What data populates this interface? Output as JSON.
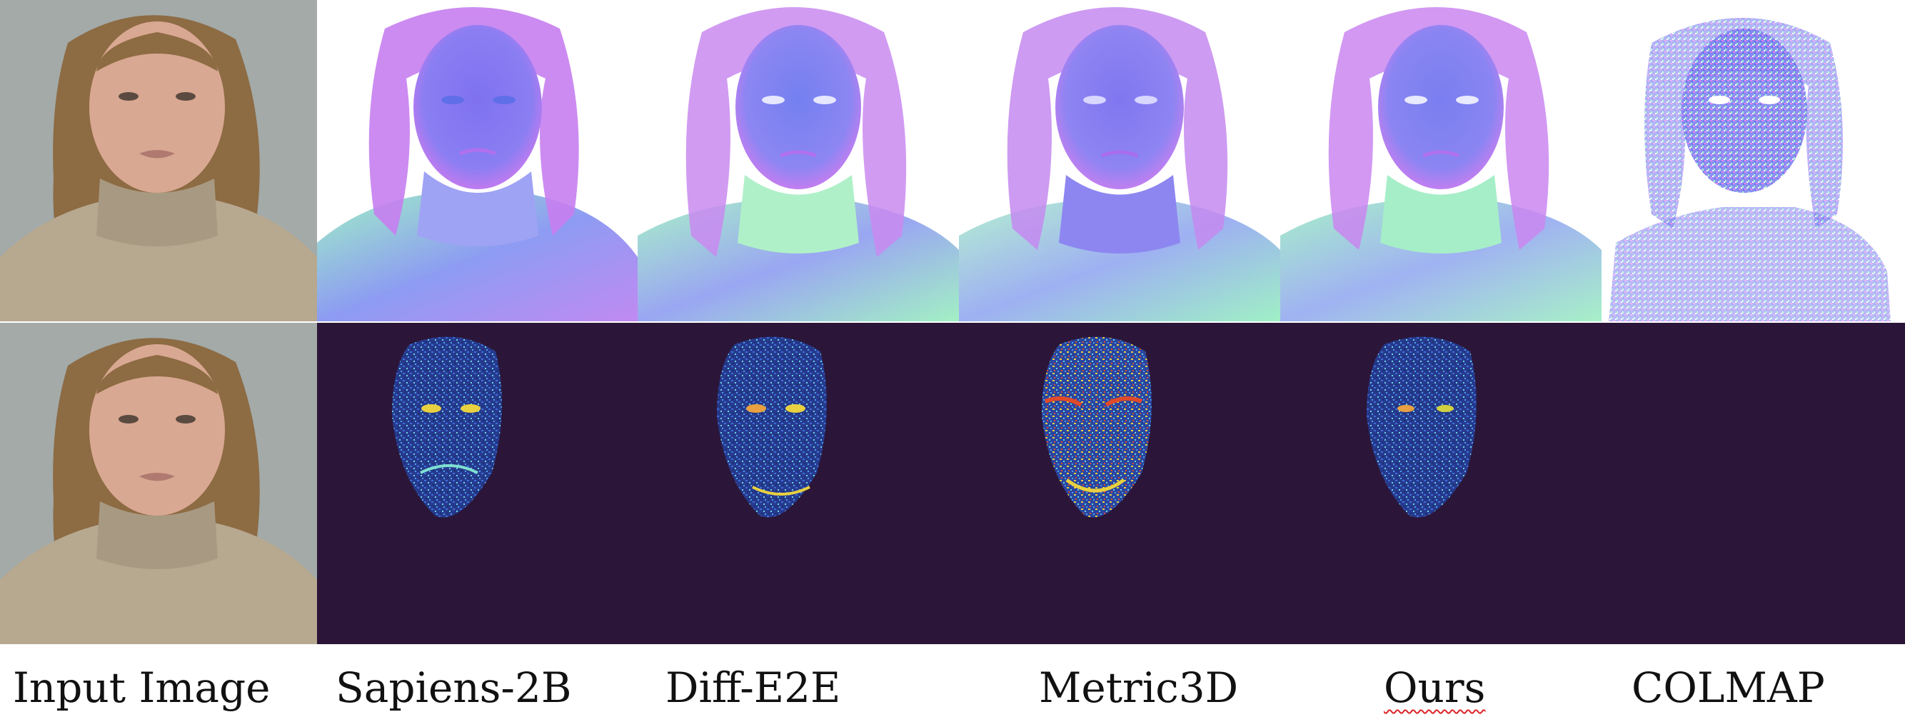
{
  "labels": {
    "input": "Input Image",
    "sapiens": "Sapiens-2B",
    "diff": "Diff-E2E",
    "metric": "Metric3D",
    "ours": "Ours",
    "colmap": "COLMAP"
  },
  "colors": {
    "error_bg": "#2b1639",
    "photo_bg": "#a3aaa8",
    "sweater": "#b7a890",
    "skin": "#d9a892",
    "hair": "#8d6b43",
    "normal_blue": "#7d7ef2",
    "normal_pink": "#e07af0",
    "normal_green": "#9ff0c6"
  }
}
